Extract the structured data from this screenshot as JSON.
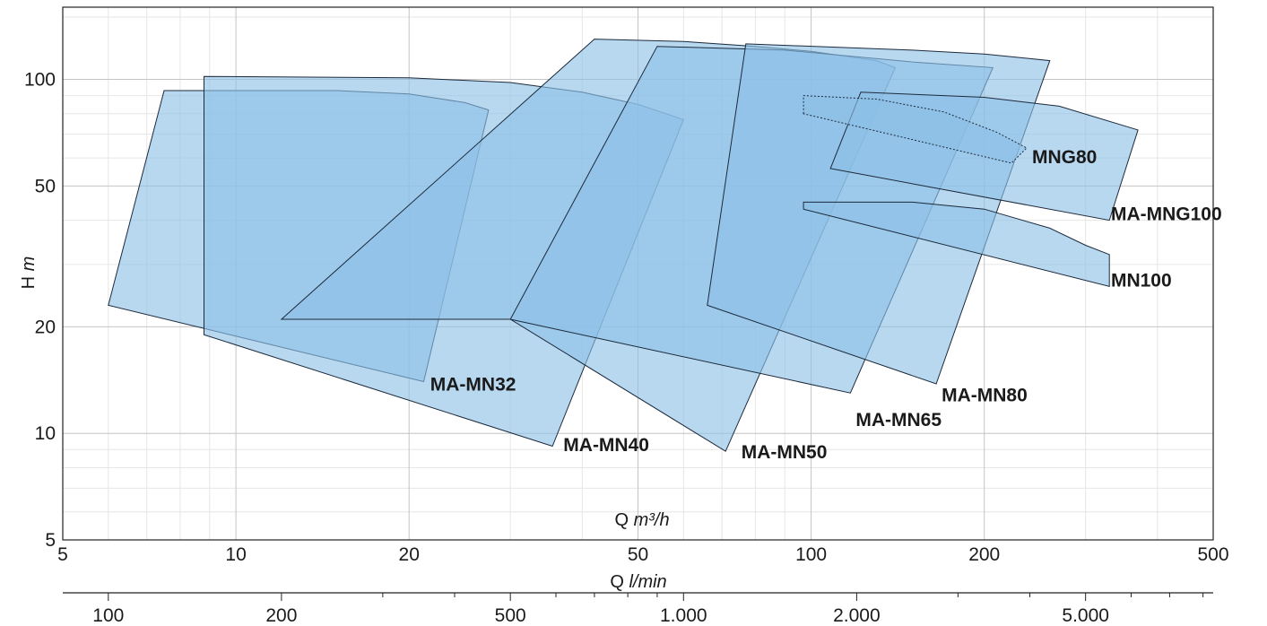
{
  "chart_data": {
    "type": "area",
    "x_scale": "log",
    "y_scale": "log",
    "grid": true,
    "xlim": [
      5,
      500
    ],
    "ylim": [
      5,
      160
    ],
    "x_ticks": [
      5,
      10,
      20,
      50,
      100,
      200,
      500
    ],
    "x_tick_labels": [
      "5",
      "10",
      "20",
      "50",
      "100",
      "200",
      "500"
    ],
    "y_ticks": [
      5,
      10,
      20,
      50,
      100
    ],
    "y_tick_labels": [
      "5",
      "10",
      "20",
      "50",
      "100"
    ],
    "x_minor_ticks": [
      6,
      7,
      8,
      9,
      30,
      40,
      60,
      70,
      80,
      90,
      300,
      400
    ],
    "y_minor_ticks": [
      6,
      7,
      8,
      9,
      30,
      40,
      60,
      70,
      80,
      90,
      150
    ],
    "xlabel_prefix": "Q ",
    "xlabel_unit": "m³/h",
    "ylabel_prefix": "H ",
    "ylabel_unit": "m",
    "secondary_x_axis": {
      "label_prefix": "Q ",
      "label_unit": "l/min",
      "ticks": [
        100,
        200,
        500,
        1000,
        2000,
        5000
      ],
      "tick_labels": [
        "100",
        "200",
        "500",
        "1.000",
        "2.000",
        "5.000"
      ],
      "minor_ticks": [
        300,
        400,
        600,
        700,
        800,
        900,
        3000,
        4000,
        6000,
        7000,
        8000
      ]
    },
    "fill_color": "#8cc0e6",
    "fill_opacity": 0.62,
    "stroke_color": "#1c2a3c",
    "series": [
      {
        "name": "MA-MN32",
        "label_at": [
          21.3,
          13.2
        ],
        "points": [
          [
            6,
            23
          ],
          [
            7.5,
            93
          ],
          [
            15,
            93
          ],
          [
            20,
            91
          ],
          [
            25,
            86
          ],
          [
            27.5,
            82
          ],
          [
            21.2,
            14
          ],
          [
            6,
            23
          ]
        ]
      },
      {
        "name": "MA-MN40",
        "label_at": [
          36.3,
          8.9
        ],
        "points": [
          [
            8.8,
            19
          ],
          [
            8.8,
            102
          ],
          [
            20,
            101
          ],
          [
            30,
            98
          ],
          [
            40,
            92
          ],
          [
            50,
            85
          ],
          [
            60,
            77
          ],
          [
            35.5,
            9.2
          ],
          [
            8.8,
            19
          ]
        ]
      },
      {
        "name": "MA-MN50",
        "label_at": [
          74,
          8.5
        ],
        "points": [
          [
            12,
            21
          ],
          [
            42,
            130
          ],
          [
            60,
            128
          ],
          [
            80,
            124
          ],
          [
            100,
            120
          ],
          [
            130,
            113
          ],
          [
            140,
            108
          ],
          [
            71,
            8.9
          ],
          [
            30,
            21
          ],
          [
            12,
            21
          ]
        ]
      },
      {
        "name": "MA-MN65",
        "label_at": [
          117,
          10.5
        ],
        "points": [
          [
            30,
            21
          ],
          [
            54,
            124
          ],
          [
            90,
            121
          ],
          [
            150,
            112
          ],
          [
            207,
            108
          ],
          [
            117,
            13
          ],
          [
            30,
            21
          ]
        ]
      },
      {
        "name": "MA-MN80",
        "label_at": [
          165,
          12.3
        ],
        "points": [
          [
            66,
            23
          ],
          [
            77,
            126
          ],
          [
            150,
            121
          ],
          [
            200,
            118
          ],
          [
            260,
            113
          ],
          [
            165,
            13.8
          ],
          [
            66,
            23
          ]
        ]
      },
      {
        "name": "MA-MNG100",
        "label_at": [
          325,
          40
        ],
        "points": [
          [
            108,
            56
          ],
          [
            122,
            92
          ],
          [
            200,
            89
          ],
          [
            270,
            84
          ],
          [
            370,
            72
          ],
          [
            330,
            40
          ],
          [
            108,
            56
          ]
        ]
      },
      {
        "name": "MN100",
        "label_at": [
          325,
          26
        ],
        "points": [
          [
            97,
            43
          ],
          [
            97,
            45
          ],
          [
            150,
            45
          ],
          [
            200,
            43
          ],
          [
            260,
            38
          ],
          [
            300,
            34
          ],
          [
            330,
            32
          ],
          [
            330,
            26
          ],
          [
            97,
            43
          ]
        ]
      },
      {
        "name": "MNG80",
        "label_at": [
          237,
          58
        ],
        "dashed": true,
        "points": [
          [
            97,
            80
          ],
          [
            97,
            90
          ],
          [
            130,
            88
          ],
          [
            170,
            81
          ],
          [
            210,
            71
          ],
          [
            237,
            64
          ],
          [
            223,
            58
          ],
          [
            97,
            80
          ]
        ]
      }
    ]
  }
}
